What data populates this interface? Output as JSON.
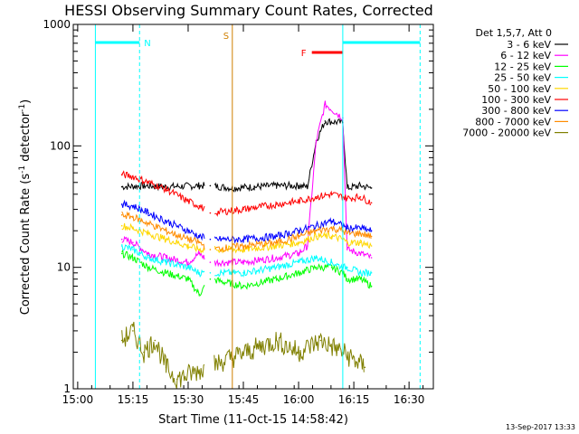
{
  "chart_data": {
    "type": "line",
    "title": "HESSI Observing Summary Count Rates, Corrected",
    "xlabel": "Start Time (11-Oct-15 14:58:42)",
    "ylabel_main": "Corrected Count Rate (s",
    "ylabel_sup1": "-1",
    "ylabel_mid": " detector",
    "ylabel_sup2": "-1",
    "ylabel_end": ")",
    "yscale": "log",
    "ylim": [
      1,
      1000
    ],
    "xlim": [
      14.98,
      16.61
    ],
    "x_ticks": [
      {
        "x": 15.0,
        "label": "15:00"
      },
      {
        "x": 15.25,
        "label": "15:15"
      },
      {
        "x": 15.5,
        "label": "15:30"
      },
      {
        "x": 15.75,
        "label": "15:45"
      },
      {
        "x": 16.0,
        "label": "16:00"
      },
      {
        "x": 16.25,
        "label": "16:15"
      },
      {
        "x": 16.5,
        "label": "16:30"
      }
    ],
    "y_ticks": [
      {
        "y": 1,
        "label": "1"
      },
      {
        "y": 10,
        "label": "10"
      },
      {
        "y": 100,
        "label": "100"
      },
      {
        "y": 1000,
        "label": "1000"
      }
    ],
    "legend_title": "Det 1,5,7, Att 0",
    "legend_placement": "right",
    "grid": false,
    "series": [
      {
        "name": "3 - 6 keV",
        "color": "#000000",
        "x": [
          15.2,
          15.3,
          15.4,
          15.55,
          15.6,
          15.7,
          15.8,
          15.9,
          16.0,
          16.04,
          16.08,
          16.12,
          16.2,
          16.22,
          16.28,
          16.33
        ],
        "y": [
          46,
          47,
          46,
          47,
          47,
          45,
          46,
          47,
          47,
          46,
          110,
          160,
          155,
          45,
          47,
          45
        ]
      },
      {
        "name": "6 - 12 keV",
        "color": "#ff00ff",
        "x": [
          15.2,
          15.25,
          15.32,
          15.4,
          15.5,
          15.55,
          15.6,
          15.75,
          15.9,
          16.0,
          16.04,
          16.08,
          16.12,
          16.2,
          16.22,
          16.28,
          16.33
        ],
        "y": [
          17,
          16,
          13,
          12,
          11,
          13,
          11,
          11,
          12,
          13,
          15,
          110,
          220,
          170,
          14,
          13,
          12
        ]
      },
      {
        "name": "12 - 25 keV",
        "color": "#00ff00",
        "x": [
          15.2,
          15.25,
          15.32,
          15.4,
          15.5,
          15.55,
          15.6,
          15.75,
          15.9,
          16.0,
          16.08,
          16.15,
          16.2,
          16.22,
          16.28,
          16.33
        ],
        "y": [
          13,
          12,
          10,
          9,
          8,
          6,
          8,
          7,
          8,
          9,
          10,
          10,
          9,
          8,
          8,
          7
        ]
      },
      {
        "name": "25 - 50 keV",
        "color": "#00ffff",
        "x": [
          15.2,
          15.25,
          15.32,
          15.4,
          15.5,
          15.55,
          15.6,
          15.75,
          15.9,
          16.0,
          16.08,
          16.15,
          16.2,
          16.22,
          16.28,
          16.33
        ],
        "y": [
          15,
          14,
          12,
          11,
          10,
          9,
          9,
          9,
          10,
          11,
          12,
          11,
          10,
          10,
          9,
          9
        ]
      },
      {
        "name": "50 - 100 keV",
        "color": "#ffd700",
        "x": [
          15.2,
          15.25,
          15.32,
          15.4,
          15.5,
          15.55,
          15.6,
          15.75,
          15.9,
          16.0,
          16.08,
          16.15,
          16.2,
          16.22,
          16.28,
          16.33
        ],
        "y": [
          22,
          21,
          19,
          17,
          15,
          14,
          14,
          14,
          15,
          16,
          18,
          18,
          17,
          16,
          16,
          15
        ]
      },
      {
        "name": "100 - 300 keV",
        "color": "#ff0000",
        "x": [
          15.2,
          15.25,
          15.32,
          15.4,
          15.5,
          15.55,
          15.6,
          15.75,
          15.9,
          16.0,
          16.08,
          16.15,
          16.2,
          16.22,
          16.28,
          16.33
        ],
        "y": [
          58,
          56,
          50,
          44,
          35,
          32,
          28,
          30,
          33,
          35,
          38,
          40,
          38,
          37,
          38,
          34
        ]
      },
      {
        "name": "300 - 800 keV",
        "color": "#0000ff",
        "x": [
          15.2,
          15.25,
          15.32,
          15.4,
          15.5,
          15.55,
          15.6,
          15.75,
          15.9,
          16.0,
          16.08,
          16.15,
          16.2,
          16.22,
          16.28,
          16.33
        ],
        "y": [
          33,
          32,
          28,
          24,
          20,
          18,
          17,
          17,
          18,
          20,
          22,
          24,
          22,
          21,
          21,
          20
        ]
      },
      {
        "name": "800 - 7000 keV",
        "color": "#ff8c00",
        "x": [
          15.2,
          15.25,
          15.32,
          15.4,
          15.5,
          15.55,
          15.6,
          15.75,
          15.9,
          16.0,
          16.08,
          16.15,
          16.2,
          16.22,
          16.28,
          16.33
        ],
        "y": [
          27,
          26,
          23,
          20,
          17,
          16,
          14,
          15,
          16,
          18,
          20,
          21,
          20,
          19,
          19,
          18
        ]
      },
      {
        "name": "7000 - 20000 keV",
        "color": "#808000",
        "x": [
          15.2,
          15.25,
          15.3,
          15.35,
          15.4,
          15.45,
          15.9,
          16.0,
          16.1,
          16.2,
          16.3
        ],
        "y": [
          2.5,
          3,
          2,
          2.5,
          1.5,
          1.2,
          2.5,
          2,
          2.5,
          2,
          1.5
        ]
      }
    ],
    "annotations": [
      {
        "label": "N",
        "color": "#00ffff",
        "x_start": 15.08,
        "x_end": 15.28
      },
      {
        "label": "S",
        "color": "#d08000",
        "x": 15.7
      },
      {
        "label": "F",
        "color": "#ff0000",
        "x_start": 16.06,
        "x_end": 16.2
      },
      {
        "label": "",
        "color": "#00ffff",
        "x_start": 16.2,
        "x_end": 16.55
      }
    ],
    "timestamp": "13-Sep-2017 13:33"
  }
}
